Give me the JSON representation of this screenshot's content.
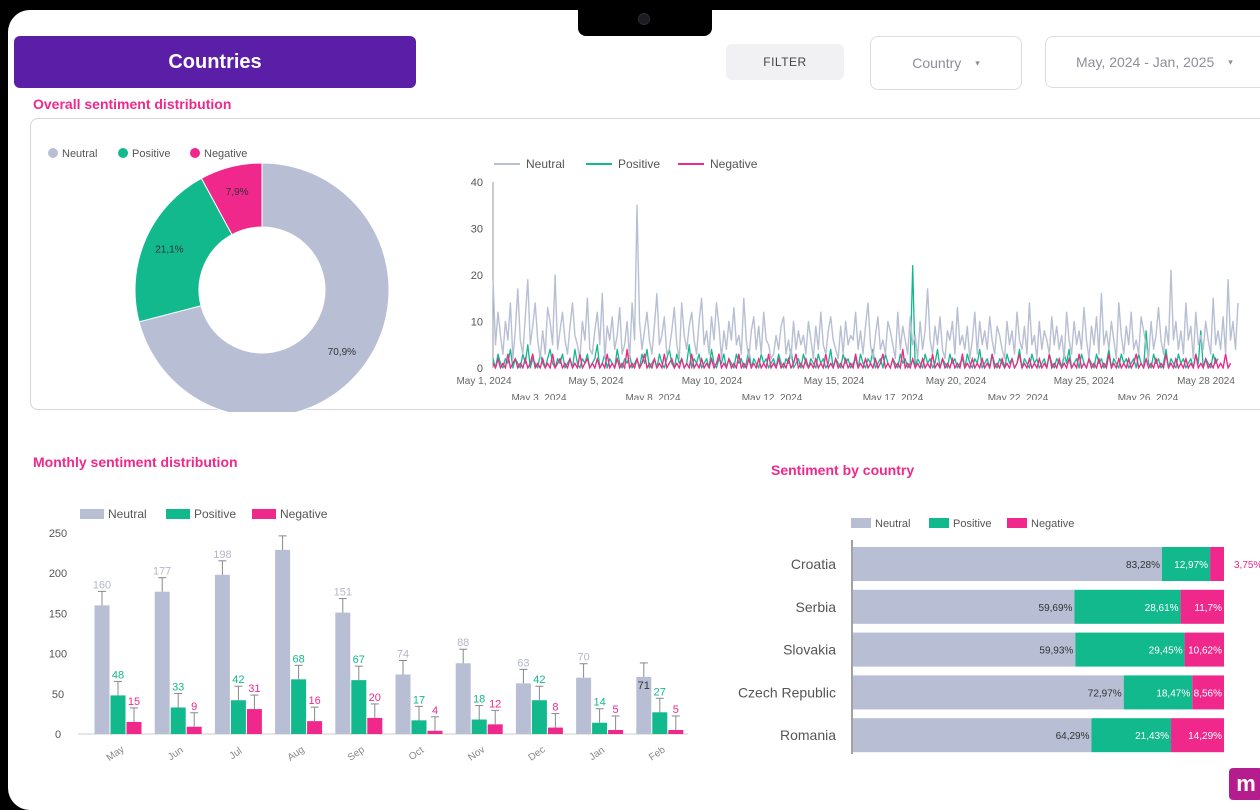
{
  "header": {
    "title": "Countries",
    "filter_label": "FILTER",
    "country_dropdown": "Country",
    "date_dropdown": "May, 2024 - Jan, 2025"
  },
  "colors": {
    "neutral": "#b8bfd4",
    "positive": "#12b98c",
    "negative": "#f0288c",
    "title": "#5b1ea7",
    "section": "#f0288c"
  },
  "sections": {
    "overall": "Overall sentiment distribution",
    "monthly": "Monthly sentiment distribution",
    "by_country": "Sentiment by country"
  },
  "legend": {
    "neutral": "Neutral",
    "positive": "Positive",
    "negative": "Negative"
  },
  "logo_letter": "m",
  "chart_data": [
    {
      "type": "pie",
      "title": "Overall sentiment distribution",
      "slices": [
        {
          "name": "Neutral",
          "value": 70.9,
          "label": "70,9%"
        },
        {
          "name": "Positive",
          "value": 21.1,
          "label": "21,1%"
        },
        {
          "name": "Negative",
          "value": 7.9,
          "label": "7,9%"
        }
      ]
    },
    {
      "type": "line",
      "ylim": [
        0,
        40
      ],
      "yticks": [
        0,
        10,
        20,
        30,
        40
      ],
      "xticks_top": [
        "May 1, 2024",
        "May 5, 2024",
        "May 10, 2024",
        "May 15, 2024",
        "May 20, 2024",
        "May 25, 2024",
        "May 28 2024"
      ],
      "xticks_bottom": [
        "May 3, 2024",
        "May 8, 2024",
        "May 12, 2024",
        "May 17, 2024",
        "May 22, 2024",
        "May 26, 2024"
      ],
      "series": [
        {
          "name": "Neutral",
          "values": [
            19,
            5,
            12,
            7,
            3,
            10,
            6,
            14,
            2,
            8,
            17,
            6,
            3,
            11,
            19,
            5,
            9,
            14,
            6,
            2,
            8,
            3,
            13,
            10,
            5,
            20,
            4,
            8,
            12,
            6,
            3,
            9,
            14,
            7,
            5,
            2,
            10,
            6,
            15,
            4,
            3,
            8,
            12,
            5,
            16,
            2,
            9,
            6,
            11,
            4,
            7,
            13,
            3,
            5,
            10,
            2,
            14,
            6,
            35,
            10,
            4,
            8,
            12,
            6,
            3,
            9,
            16,
            5,
            7,
            11,
            3,
            4,
            8,
            13,
            5,
            2,
            14,
            7,
            4,
            9,
            12,
            6,
            3,
            10,
            15,
            5,
            8,
            3,
            11,
            6,
            14,
            9,
            2,
            8,
            4,
            10,
            6,
            13,
            5,
            7,
            3,
            15,
            6,
            2,
            8,
            11,
            4,
            9,
            3,
            12,
            6,
            5,
            2,
            3,
            7,
            4,
            9,
            11,
            3,
            6,
            2,
            10,
            4,
            8,
            5,
            7,
            3,
            10,
            6,
            2,
            9,
            4,
            12,
            5,
            3,
            8,
            11,
            6,
            4,
            2,
            9,
            3,
            10,
            5,
            7,
            6,
            12,
            4,
            8,
            3,
            9,
            14,
            5,
            2,
            7,
            11,
            4,
            6,
            3,
            10,
            8,
            5,
            2,
            12,
            4,
            9,
            6,
            3,
            11,
            5,
            7,
            2,
            10,
            4,
            8,
            17,
            6,
            3,
            9,
            5,
            11,
            4,
            2,
            8,
            6,
            10,
            3,
            13,
            5,
            7,
            4,
            9,
            2,
            6,
            12,
            3,
            10,
            5,
            8,
            4,
            11,
            6,
            3,
            9,
            7,
            4,
            2,
            10,
            5,
            8,
            3,
            12,
            6,
            4,
            9,
            3,
            14,
            5,
            7,
            2,
            10,
            4,
            8,
            6,
            3,
            11,
            5,
            9,
            4,
            7,
            2,
            12,
            6,
            3,
            10,
            5,
            8,
            4,
            13,
            6,
            2,
            9,
            5,
            11,
            3,
            16,
            5,
            8,
            4,
            10,
            6,
            2,
            14,
            7,
            3,
            9,
            5,
            12,
            4,
            6,
            3,
            11,
            8,
            5,
            2,
            10,
            4,
            7,
            13,
            6,
            3,
            9,
            5,
            21,
            6,
            10,
            4,
            8,
            3,
            14,
            6,
            9,
            2,
            12,
            5,
            7,
            4,
            10,
            6,
            3,
            15,
            5,
            8,
            4,
            11,
            3,
            19,
            6,
            10,
            4,
            14
          ]
        },
        {
          "name": "Positive",
          "values": [
            2,
            0,
            3,
            1,
            0,
            2,
            1,
            4,
            0,
            2,
            1,
            0,
            3,
            1,
            5,
            0,
            2,
            1,
            0,
            3,
            1,
            0,
            2,
            4,
            1,
            0,
            2,
            1,
            3,
            0,
            1,
            2,
            0,
            4,
            1,
            0,
            2,
            1,
            3,
            0,
            1,
            2,
            5,
            0,
            1,
            3,
            0,
            2,
            1,
            0,
            4,
            1,
            0,
            2,
            1,
            3,
            0,
            1,
            2,
            0,
            3,
            1,
            4,
            0,
            1,
            2,
            0,
            3,
            1,
            0,
            2,
            4,
            1,
            0,
            3,
            1,
            2,
            0,
            1,
            5,
            0,
            2,
            1,
            3,
            0,
            1,
            2,
            0,
            4,
            1,
            0,
            2,
            1,
            3,
            0,
            2,
            1,
            0,
            3,
            1,
            2,
            0,
            1,
            4,
            0,
            2,
            1,
            0,
            3,
            1,
            2,
            0,
            1,
            2,
            0,
            3,
            1,
            0,
            2,
            1,
            4,
            0,
            1,
            2,
            0,
            3,
            1,
            0,
            2,
            1,
            0,
            3,
            1,
            2,
            0,
            1,
            4,
            0,
            2,
            1,
            0,
            3,
            1,
            2,
            0,
            1,
            2,
            0,
            3,
            1,
            0,
            2,
            1,
            4,
            0,
            1,
            2,
            0,
            3,
            1,
            0,
            2,
            1,
            0,
            3,
            1,
            2,
            0,
            1,
            22,
            0,
            2,
            1,
            0,
            3,
            1,
            2,
            0,
            1,
            4,
            0,
            2,
            1,
            0,
            3,
            1,
            2,
            0,
            1,
            2,
            0,
            3,
            1,
            0,
            2,
            1,
            4,
            0,
            1,
            2,
            0,
            3,
            1,
            0,
            2,
            1,
            0,
            3,
            1,
            2,
            0,
            1,
            4,
            0,
            2,
            1,
            0,
            3,
            1,
            2,
            0,
            1,
            2,
            0,
            3,
            1,
            0,
            2,
            1,
            0,
            3,
            1,
            4,
            0,
            1,
            2,
            0,
            3,
            1,
            0,
            2,
            1,
            0,
            3,
            1,
            2,
            0,
            1,
            4,
            0,
            2,
            1,
            0,
            3,
            1,
            2,
            0,
            1,
            2,
            0,
            3,
            1,
            0,
            8,
            1,
            0,
            3,
            1,
            2,
            0,
            1,
            4,
            0,
            2,
            1,
            0,
            3,
            1,
            2,
            0,
            1,
            2,
            0,
            3,
            1,
            8,
            0,
            2,
            1,
            0,
            3,
            1,
            2
          ]
        },
        {
          "name": "Negative",
          "values": [
            1,
            0,
            2,
            0,
            1,
            0,
            3,
            0,
            1,
            2,
            0,
            1,
            0,
            2,
            0,
            1,
            3,
            0,
            1,
            0,
            2,
            0,
            1,
            0,
            3,
            0,
            1,
            2,
            0,
            1,
            0,
            2,
            0,
            1,
            0,
            3,
            0,
            1,
            2,
            0,
            1,
            0,
            2,
            0,
            1,
            0,
            3,
            0,
            1,
            0,
            2,
            0,
            1,
            0,
            4,
            0,
            1,
            0,
            2,
            0,
            1,
            3,
            0,
            1,
            0,
            2,
            0,
            1,
            0,
            3,
            0,
            1,
            2,
            0,
            1,
            0,
            2,
            0,
            1,
            0,
            3,
            0,
            1,
            0,
            2,
            0,
            1,
            0,
            2,
            0,
            1,
            3,
            0,
            1,
            0,
            2,
            0,
            1,
            0,
            3,
            0,
            1,
            0,
            2,
            0,
            1,
            0,
            2,
            0,
            1,
            0,
            3,
            0,
            1,
            0,
            2,
            0,
            1,
            0,
            2,
            0,
            1,
            3,
            0,
            1,
            0,
            2,
            0,
            1,
            0,
            2,
            0,
            1,
            0,
            3,
            0,
            1,
            0,
            2,
            0,
            1,
            0,
            2,
            0,
            1,
            0,
            3,
            0,
            1,
            0,
            2,
            0,
            1,
            0,
            2,
            0,
            1,
            3,
            0,
            1,
            0,
            2,
            0,
            1,
            0,
            4,
            0,
            1,
            0,
            2,
            0,
            1,
            0,
            2,
            0,
            1,
            0,
            3,
            0,
            1,
            0,
            2,
            0,
            1,
            0,
            2,
            0,
            1,
            0,
            3,
            0,
            1,
            0,
            2,
            0,
            1,
            0,
            2,
            0,
            1,
            0,
            3,
            0,
            1,
            0,
            2,
            0,
            1,
            0,
            2,
            0,
            1,
            3,
            0,
            1,
            0,
            2,
            0,
            1,
            0,
            2,
            0,
            1,
            0,
            3,
            0,
            1,
            0,
            2,
            0,
            1,
            0,
            2,
            0,
            1,
            0,
            3,
            0,
            1,
            0,
            2,
            0,
            1,
            0,
            2,
            0,
            1,
            0,
            3,
            0,
            1,
            0,
            2,
            0,
            1,
            0,
            2,
            0,
            1,
            3,
            0,
            1,
            0,
            2,
            0,
            1,
            0,
            2,
            0,
            1,
            0,
            3,
            0,
            1,
            0,
            2,
            0,
            1,
            0,
            2,
            0,
            1,
            0,
            3,
            0,
            1,
            0,
            2,
            0,
            1,
            0,
            2,
            0,
            1,
            0,
            3,
            0,
            1
          ]
        }
      ]
    },
    {
      "type": "bar",
      "title": "Monthly sentiment distribution",
      "ylim": [
        0,
        250
      ],
      "yticks": [
        0,
        50,
        100,
        150,
        200,
        250
      ],
      "categories": [
        "May",
        "Jun",
        "Jul",
        "Aug",
        "Sep",
        "Oct",
        "Nov",
        "Dec",
        "Jan",
        "Feb"
      ],
      "series": [
        {
          "name": "Neutral",
          "values": [
            160,
            177,
            198,
            229,
            151,
            74,
            88,
            63,
            70,
            71
          ],
          "labels": [
            "160",
            "177",
            "198",
            "",
            "151",
            "74",
            "88",
            "63",
            "70",
            "71"
          ]
        },
        {
          "name": "Positive",
          "values": [
            48,
            33,
            42,
            68,
            67,
            17,
            18,
            42,
            14,
            27
          ]
        },
        {
          "name": "Negative",
          "values": [
            15,
            9,
            31,
            16,
            20,
            4,
            12,
            8,
            5,
            5
          ]
        }
      ]
    },
    {
      "type": "bar",
      "orientation": "horizontal",
      "stacked": "percent",
      "title": "Sentiment by country",
      "categories": [
        "Croatia",
        "Serbia",
        "Slovakia",
        "Czech Republic",
        "Romania"
      ],
      "series": [
        {
          "name": "Neutral",
          "values": [
            83.28,
            59.69,
            59.93,
            72.97,
            64.29
          ],
          "labels": [
            "83,28%",
            "59,69%",
            "59,93%",
            "72,97%",
            "64,29%"
          ]
        },
        {
          "name": "Positive",
          "values": [
            12.97,
            28.61,
            29.45,
            18.47,
            21.43
          ],
          "labels": [
            "12,97%",
            "28,61%",
            "29,45%",
            "18,47%",
            "21,43%"
          ]
        },
        {
          "name": "Negative",
          "values": [
            3.75,
            11.7,
            10.62,
            8.56,
            14.29
          ],
          "labels": [
            "3,75%",
            "11,7%",
            "10,62%",
            "8,56%",
            "14,29%"
          ]
        }
      ]
    }
  ]
}
